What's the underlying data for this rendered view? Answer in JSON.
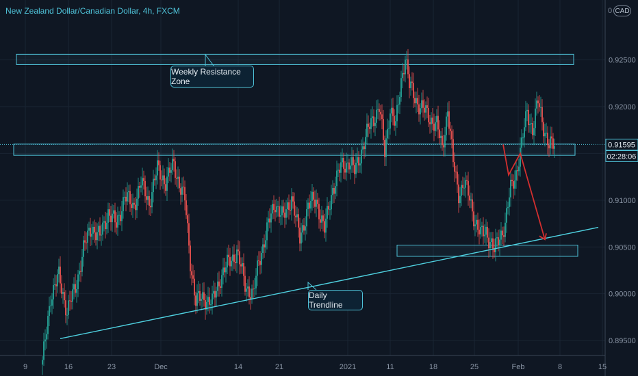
{
  "title": "New Zealand Dollar/Canadian Dollar, 4h, FXCM",
  "currency_badge": "CAD",
  "corner_label": "0",
  "annotations": {
    "resistance_label": "Weekly Resistance Zone",
    "trendline_label": "Daily Trendline"
  },
  "price_label": {
    "value": "0.91595",
    "countdown": "02:28:06"
  },
  "colors": {
    "up": "#26a69a",
    "down": "#ef5350",
    "zone": "#4fc3d9",
    "trendline": "#4fd1e0",
    "projection": "#d32f2f",
    "background": "#0f1723"
  },
  "chart_data": {
    "type": "candlestick",
    "title": "New Zealand Dollar/Canadian Dollar, 4h, FXCM",
    "y_ticks": [
      "0.92500",
      "0.92000",
      "0.91000",
      "0.90500",
      "0.90000",
      "0.89500"
    ],
    "y_tick_values": [
      0.925,
      0.92,
      0.91,
      0.905,
      0.9,
      0.895
    ],
    "x_ticks": [
      "9",
      "16",
      "23",
      "Dec",
      "14",
      "21",
      "2021",
      "11",
      "18",
      "25",
      "Feb",
      "8",
      "15"
    ],
    "ylim": [
      0.8934,
      0.9314
    ],
    "grid": true,
    "last_price": 0.91595,
    "zones": [
      {
        "name": "Weekly Resistance Zone",
        "low": 0.9245,
        "high": 0.9256
      },
      {
        "name": "",
        "low": 0.9148,
        "high": 0.916
      },
      {
        "name": "",
        "low": 0.904,
        "high": 0.9052
      }
    ],
    "trendline": {
      "name": "Daily Trendline",
      "start": 0.8952,
      "end": 0.9071
    },
    "path": [
      [
        0,
        0.8925
      ],
      [
        6,
        0.8998
      ],
      [
        12,
        0.9018
      ],
      [
        18,
        0.8982
      ],
      [
        24,
        0.9005
      ],
      [
        30,
        0.9048
      ],
      [
        36,
        0.9072
      ],
      [
        42,
        0.906
      ],
      [
        48,
        0.9088
      ],
      [
        54,
        0.9073
      ],
      [
        60,
        0.9105
      ],
      [
        66,
        0.9093
      ],
      [
        72,
        0.9118
      ],
      [
        78,
        0.9098
      ],
      [
        84,
        0.9133
      ],
      [
        90,
        0.912
      ],
      [
        96,
        0.9138
      ],
      [
        100,
        0.9118
      ],
      [
        104,
        0.91
      ],
      [
        108,
        0.9035
      ],
      [
        112,
        0.8992
      ],
      [
        118,
        0.8996
      ],
      [
        124,
        0.899
      ],
      [
        130,
        0.9018
      ],
      [
        136,
        0.9033
      ],
      [
        142,
        0.9045
      ],
      [
        148,
        0.901
      ],
      [
        154,
        0.8998
      ],
      [
        158,
        0.9035
      ],
      [
        164,
        0.9068
      ],
      [
        170,
        0.9098
      ],
      [
        176,
        0.908
      ],
      [
        182,
        0.9104
      ],
      [
        188,
        0.9058
      ],
      [
        194,
        0.9094
      ],
      [
        200,
        0.91
      ],
      [
        206,
        0.9068
      ],
      [
        212,
        0.9113
      ],
      [
        218,
        0.9135
      ],
      [
        224,
        0.9142
      ],
      [
        228,
        0.913
      ],
      [
        234,
        0.9158
      ],
      [
        240,
        0.9183
      ],
      [
        246,
        0.92
      ],
      [
        250,
        0.915
      ],
      [
        254,
        0.92
      ],
      [
        258,
        0.9178
      ],
      [
        262,
        0.9228
      ],
      [
        265,
        0.9255
      ],
      [
        268,
        0.9222
      ],
      [
        272,
        0.921
      ],
      [
        276,
        0.92
      ],
      [
        282,
        0.919
      ],
      [
        288,
        0.918
      ],
      [
        292,
        0.9155
      ],
      [
        296,
        0.9198
      ],
      [
        300,
        0.914
      ],
      [
        304,
        0.9108
      ],
      [
        308,
        0.9118
      ],
      [
        312,
        0.9102
      ],
      [
        316,
        0.9078
      ],
      [
        320,
        0.9062
      ],
      [
        324,
        0.9068
      ],
      [
        330,
        0.9045
      ],
      [
        334,
        0.9062
      ],
      [
        338,
        0.9074
      ],
      [
        342,
        0.9112
      ],
      [
        346,
        0.913
      ],
      [
        350,
        0.9158
      ],
      [
        354,
        0.9196
      ],
      [
        358,
        0.9175
      ],
      [
        362,
        0.9205
      ],
      [
        366,
        0.918
      ],
      [
        370,
        0.9158
      ],
      [
        374,
        0.9158
      ]
    ],
    "projection": [
      0.91595,
      0.9127,
      0.915,
      0.9058
    ]
  }
}
